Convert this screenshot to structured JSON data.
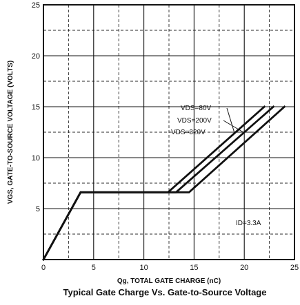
{
  "chart_data": {
    "type": "line",
    "title": "Typical Gate Charge Vs. Gate-to-Source Voltage",
    "xlabel": "Qg, TOTAL GATE CHARGE (nC)",
    "ylabel": "VGS, GATE-TO-SOURCE VOLTAGE (VOLTS)",
    "xlim": [
      0,
      25
    ],
    "ylim": [
      0,
      25
    ],
    "x_ticks": [
      "0",
      "5",
      "10",
      "15",
      "20",
      "25"
    ],
    "y_ticks": [
      "5",
      "10",
      "15",
      "20",
      "25"
    ],
    "grid": true,
    "annotation": "ID=3.3A",
    "series": [
      {
        "name": "VDS=80V",
        "x": [
          0,
          3.7,
          12.4,
          22.0
        ],
        "y": [
          0,
          6.6,
          6.6,
          15.0
        ]
      },
      {
        "name": "VDS=200V",
        "x": [
          0,
          3.7,
          13.2,
          22.9
        ],
        "y": [
          0,
          6.6,
          6.6,
          15.0
        ]
      },
      {
        "name": "VDS=320V",
        "x": [
          0,
          3.7,
          14.5,
          24.0
        ],
        "y": [
          0,
          6.6,
          6.6,
          15.0
        ]
      }
    ],
    "line_color": "#111111",
    "grid_color": "#111111",
    "background_color": "#ffffff"
  }
}
